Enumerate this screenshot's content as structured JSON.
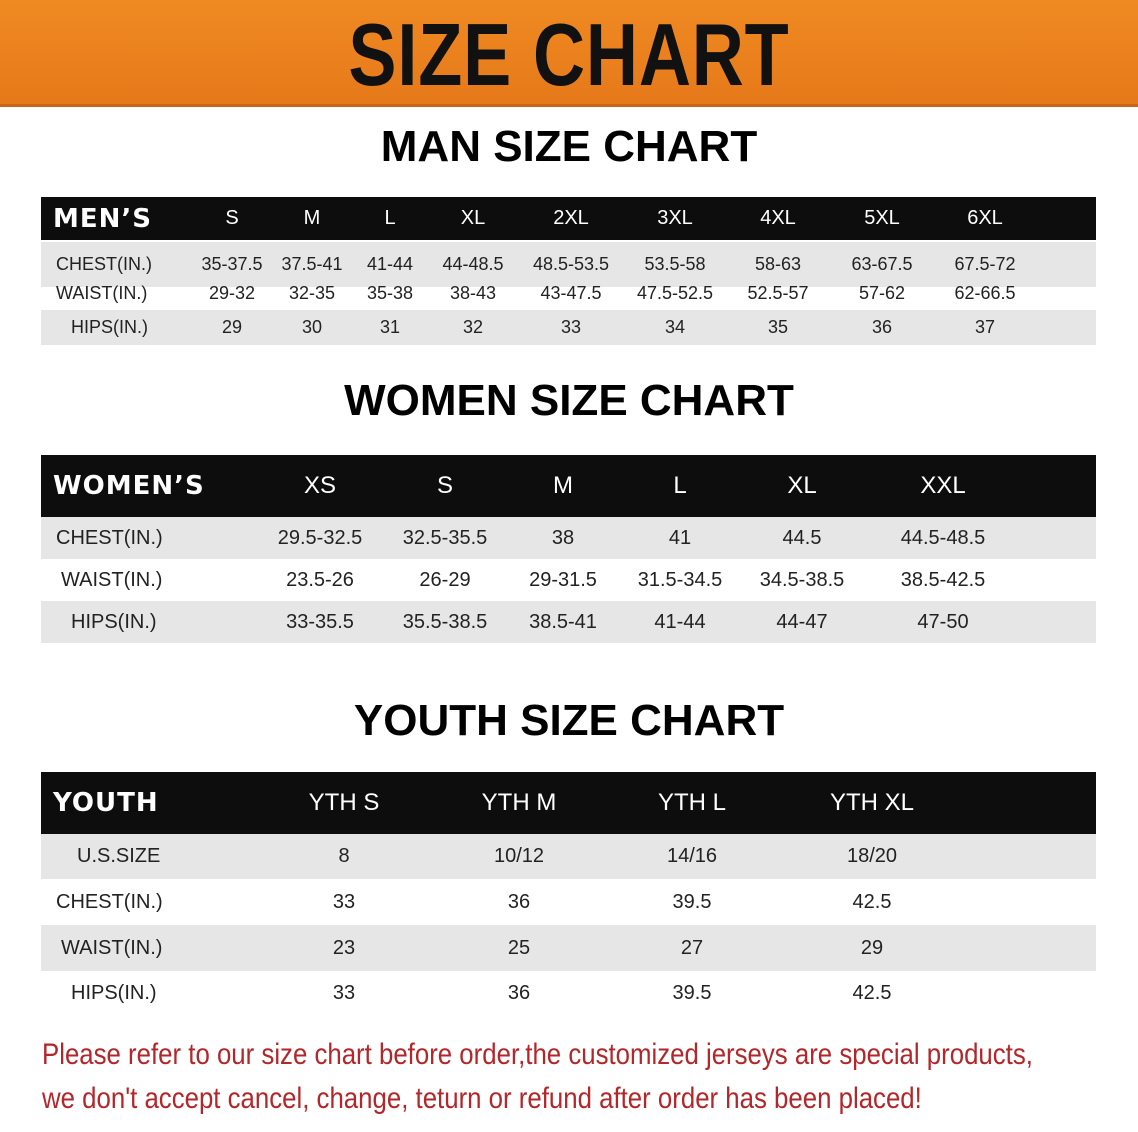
{
  "banner": {
    "title": "SIZE CHART",
    "background": "#e9801e"
  },
  "men": {
    "title": "MAN SIZE CHART",
    "header": {
      "label": "MEN’S",
      "sizes": [
        "S",
        "M",
        "L",
        "XL",
        "2XL",
        "3XL",
        "4XL",
        "5XL",
        "6XL"
      ]
    },
    "rows": [
      {
        "label": "CHEST(IN.)",
        "values": [
          "35-37.5",
          "37.5-41",
          "41-44",
          "44-48.5",
          "48.5-53.5",
          "53.5-58",
          "58-63",
          "63-67.5",
          "67.5-72"
        ]
      },
      {
        "label": "WAIST(IN.)",
        "values": [
          "29-32",
          "32-35",
          "35-38",
          "38-43",
          "43-47.5",
          "47.5-52.5",
          "52.5-57",
          "57-62",
          "62-66.5"
        ]
      },
      {
        "label": "HIPS(IN.)",
        "values": [
          "29",
          "30",
          "31",
          "32",
          "33",
          "34",
          "35",
          "36",
          "37"
        ]
      }
    ]
  },
  "women": {
    "title": "WOMEN SIZE CHART",
    "header": {
      "label": "WOMEN’S",
      "sizes": [
        "XS",
        "S",
        "M",
        "L",
        "XL",
        "XXL"
      ]
    },
    "rows": [
      {
        "label": "CHEST(IN.)",
        "values": [
          "29.5-32.5",
          "32.5-35.5",
          "38",
          "41",
          "44.5",
          "44.5-48.5"
        ]
      },
      {
        "label": "WAIST(IN.)",
        "values": [
          "23.5-26",
          "26-29",
          "29-31.5",
          "31.5-34.5",
          "34.5-38.5",
          "38.5-42.5"
        ]
      },
      {
        "label": "HIPS(IN.)",
        "values": [
          "33-35.5",
          "35.5-38.5",
          "38.5-41",
          "41-44",
          "44-47",
          "47-50"
        ]
      }
    ]
  },
  "youth": {
    "title": "YOUTH SIZE CHART",
    "header": {
      "label": "YOUTH",
      "sizes": [
        "YTH S",
        "YTH M",
        "YTH L",
        "YTH XL"
      ]
    },
    "rows": [
      {
        "label": "U.S.SIZE",
        "values": [
          "8",
          "10/12",
          "14/16",
          "18/20"
        ]
      },
      {
        "label": "CHEST(IN.)",
        "values": [
          "33",
          "36",
          "39.5",
          "42.5"
        ]
      },
      {
        "label": "WAIST(IN.)",
        "values": [
          "23",
          "25",
          "27",
          "29"
        ]
      },
      {
        "label": "HIPS(IN.)",
        "values": [
          "33",
          "36",
          "39.5",
          "42.5"
        ]
      }
    ]
  },
  "notice": {
    "line1": "Please refer to our size chart before order,the customized jerseys are special products,",
    "line2": "we don't accept cancel, change, teturn or refund after order has been placed!",
    "color": "#b3262a"
  }
}
